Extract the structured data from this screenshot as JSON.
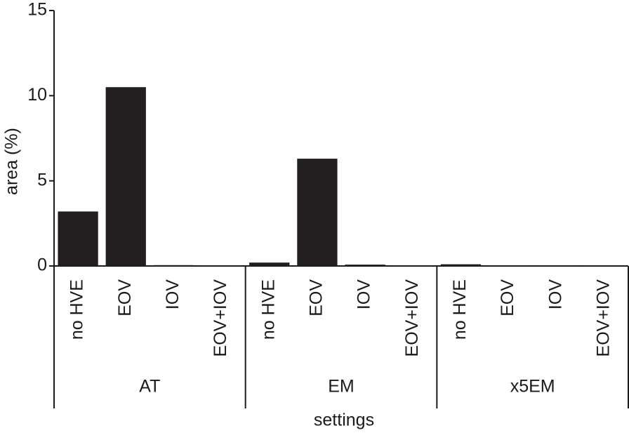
{
  "chart_data": {
    "type": "bar",
    "ylabel": "area (%)",
    "xlabel": "settings",
    "categories": [
      "no HVE",
      "EOV",
      "IOV",
      "EOV+IOV",
      "no HVE",
      "EOV",
      "IOV",
      "EOV+IOV",
      "no HVE",
      "EOV",
      "IOV",
      "EOV+IOV"
    ],
    "groups": [
      "AT",
      "EM",
      "x5EM"
    ],
    "values": [
      3.2,
      10.5,
      0.05,
      0.03,
      0.2,
      6.3,
      0.08,
      0.02,
      0.1,
      0.02,
      0.02,
      0.02
    ],
    "color": "#231f20",
    "ylim": [
      0,
      15
    ],
    "yticks": [
      0,
      5,
      10,
      15
    ]
  }
}
